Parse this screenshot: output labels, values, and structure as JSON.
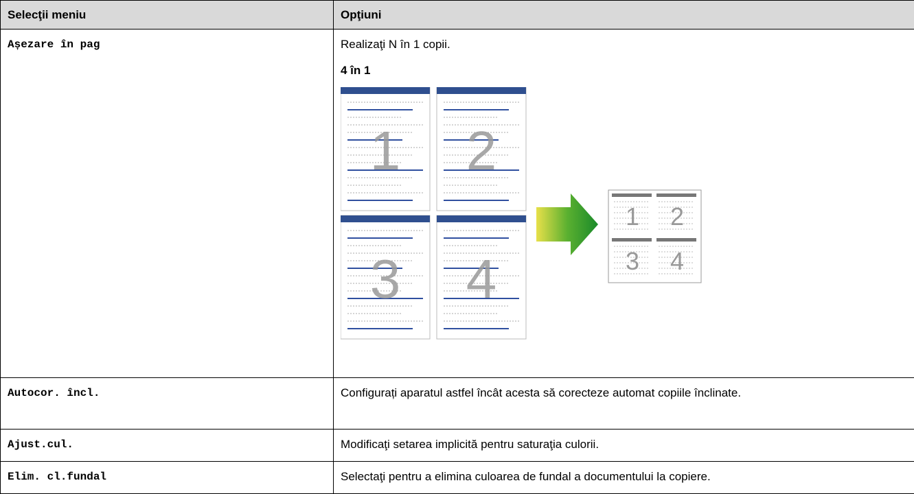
{
  "table": {
    "header": [
      "Selecţii meniu",
      "Opţiuni"
    ],
    "rows": [
      {
        "menu": "Așezare în pag",
        "description": "Realizaţi N în 1 copii.",
        "option_title": "4 în 1"
      },
      {
        "menu": "Autocor. încl.",
        "description": "Configurați aparatul astfel încât acesta să corecteze automat copiile înclinate."
      },
      {
        "menu": "Ajust.cul.",
        "description": "Modificaţi setarea implicită pentru saturaţia culorii."
      },
      {
        "menu": "Elim. cl.fundal",
        "description": "Selectaţi pentru a elimina culoarea de fundal a documentului la copiere."
      }
    ]
  },
  "figure": {
    "page_numbers": [
      "1",
      "2",
      "3",
      "4"
    ]
  }
}
